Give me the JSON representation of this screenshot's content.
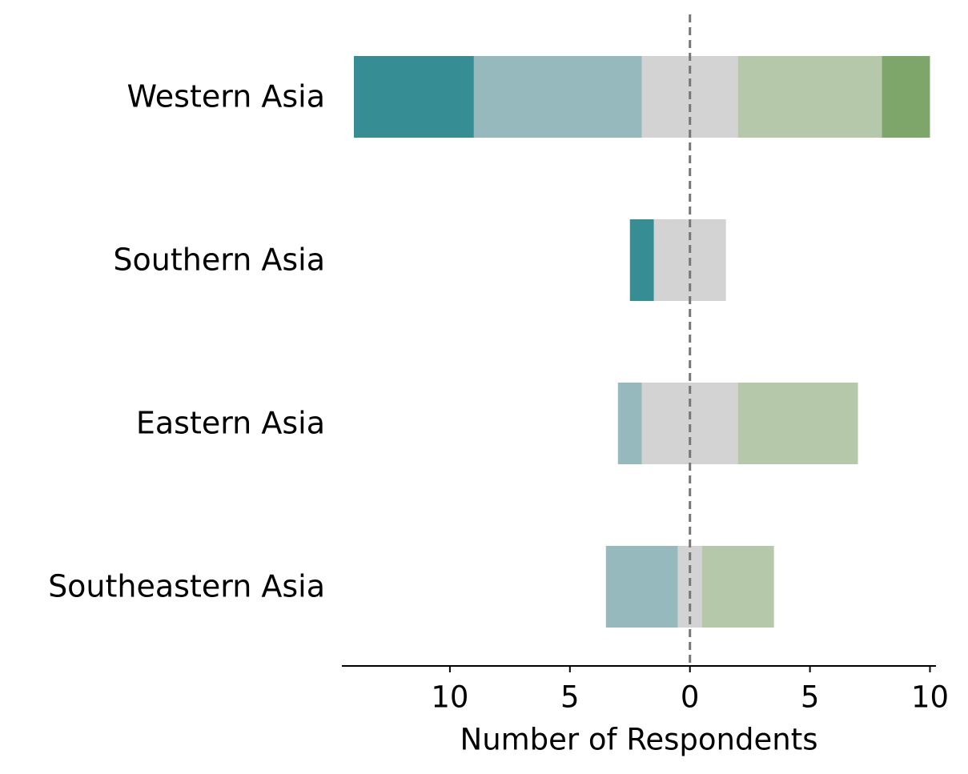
{
  "chart_data": {
    "type": "diverging_bar",
    "xlabel": "Number of Respondents",
    "categories": [
      "Western Asia",
      "Southern Asia",
      "Eastern Asia",
      "Southeastern Asia"
    ],
    "series": [
      {
        "color": "#378d94",
        "values": [
          5,
          1,
          0,
          0
        ]
      },
      {
        "color": "#96b9be",
        "values": [
          7,
          0,
          1,
          3
        ]
      },
      {
        "color": "#d3d3d3",
        "values": [
          4,
          3,
          4,
          1
        ]
      },
      {
        "color": "#b5c9aa",
        "values": [
          6,
          0,
          5,
          3
        ]
      },
      {
        "color": "#7ea66b",
        "values": [
          2,
          0,
          0,
          0
        ]
      }
    ],
    "xlim": [
      -14.5,
      10.25
    ],
    "xticks": [
      {
        "value": -10,
        "label": "10"
      },
      {
        "value": -5,
        "label": "5"
      },
      0,
      5,
      10
    ]
  }
}
